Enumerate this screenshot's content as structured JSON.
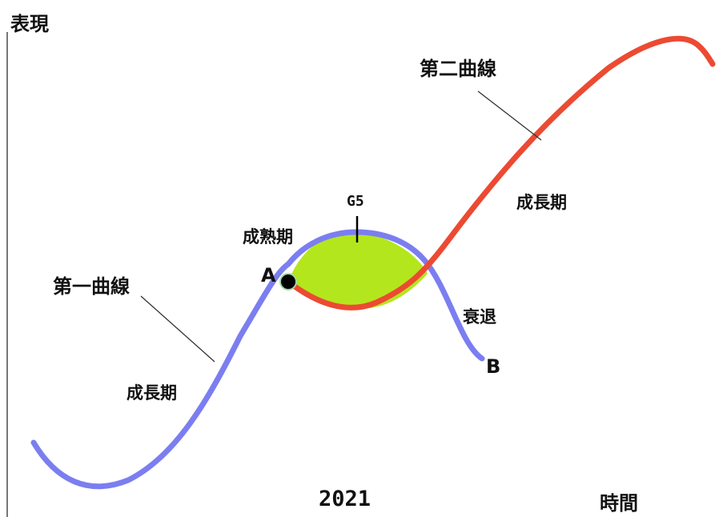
{
  "colors": {
    "first_curve": "#7b7ef0",
    "second_curve": "#ec4a32",
    "second_curve_label": "#f0712c",
    "overlap_fill": "#b4e61e",
    "text": "#111111",
    "axis": "#777777",
    "leader": "#333333",
    "point_a": "#000000"
  },
  "axes": {
    "y_label": "表現",
    "x_label": "時間"
  },
  "year": "2021",
  "first_curve": {
    "name": "第一曲線",
    "growth_label": "成長期",
    "maturity_label": "成熟期",
    "decline_label": "衰退"
  },
  "second_curve": {
    "name": "第二曲線",
    "growth_label": "成長期"
  },
  "overlap_label": "G5",
  "points": {
    "a": "A",
    "b": "B"
  }
}
